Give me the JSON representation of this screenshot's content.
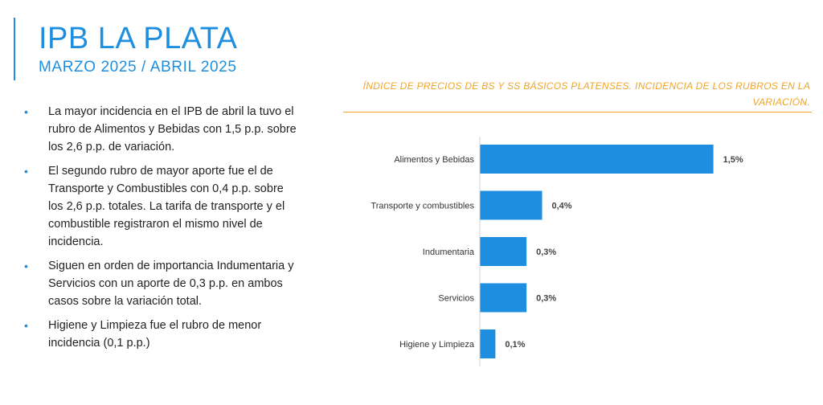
{
  "header": {
    "title": "IPB LA PLATA",
    "subtitle": "MARZO 2025 / ABRIL 2025"
  },
  "bullets": [
    "La mayor incidencia en el IPB de abril la tuvo el rubro de Alimentos y Bebidas con 1,5 p.p. sobre los 2,6 p.p. de variación.",
    "El segundo rubro de mayor aporte fue el de Transporte y Combustibles con 0,4 p.p. sobre los 2,6 p.p. totales. La tarifa de transporte y el combustible registraron el mismo nivel de incidencia.",
    "Siguen en orden de importancia Indumentaria y Servicios con un aporte de 0,3 p.p. en ambos casos sobre la variación total.",
    "Higiene y Limpieza fue el rubro de menor incidencia (0,1 p.p.)"
  ],
  "bullet_glyph": "•",
  "colors": {
    "accent": "#1e8fe0",
    "bar": "#1e8fe0",
    "chart_title": "#f0a42a"
  },
  "chart_data": {
    "type": "bar",
    "orientation": "horizontal",
    "title": "ÍNDICE DE PRECIOS DE BS Y SS BÁSICOS PLATENSES. INCIDENCIA DE LOS RUBROS EN LA VARIACIÓN.",
    "categories": [
      "Alimentos y Bebidas",
      "Transporte y combustibles",
      "Indumentaria",
      "Servicios",
      "Higiene y Limpieza"
    ],
    "values": [
      1.5,
      0.4,
      0.3,
      0.3,
      0.1
    ],
    "data_labels": [
      "1,5%",
      "0,4%",
      "0,3%",
      "0,3%",
      "0,1%"
    ],
    "xlim": [
      0,
      1.6
    ],
    "grid": false,
    "legend": "none"
  }
}
